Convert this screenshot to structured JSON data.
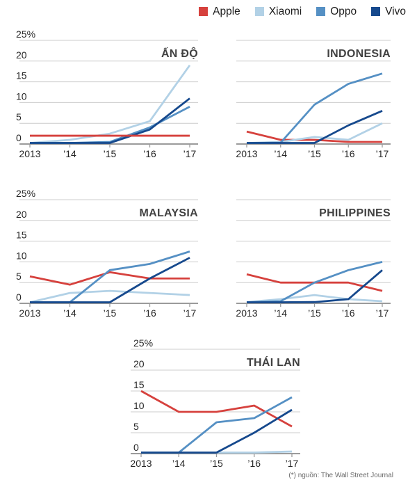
{
  "legend": {
    "items": [
      {
        "label": "Apple",
        "color_key": "apple"
      },
      {
        "label": "Xiaomi",
        "color_key": "xiaomi"
      },
      {
        "label": "Oppo",
        "color_key": "oppo"
      },
      {
        "label": "Vivo",
        "color_key": "vivo"
      }
    ]
  },
  "colors": {
    "apple": "#d6413d",
    "xiaomi": "#b2d1e6",
    "oppo": "#5590c4",
    "vivo": "#16498d",
    "gridline": "#cccccc",
    "baseline": "#9b9b9b",
    "axis_text": "#262626",
    "title_text": "#414141",
    "footer_text": "#6b6b6b"
  },
  "footer": {
    "source_note": "(*) nguồn: The Wall Street Journal"
  },
  "chart_data": [
    {
      "id": "india",
      "type": "line",
      "title": "ẤN ĐỘ",
      "x": [
        "2013",
        "’14",
        "’15",
        "’16",
        "’17"
      ],
      "y_ticks": [
        0,
        5,
        10,
        15,
        20,
        25
      ],
      "y_tick_labels": [
        "0",
        "5",
        "10",
        "15",
        "20",
        "25%"
      ],
      "y_max": 25,
      "grid": true,
      "unit": "%",
      "series": [
        {
          "name": "Xiaomi",
          "color_key": "xiaomi",
          "values": [
            0,
            1,
            2.5,
            5.5,
            19
          ]
        },
        {
          "name": "Oppo",
          "color_key": "oppo",
          "values": [
            0,
            0,
            0.5,
            4,
            9
          ]
        },
        {
          "name": "Vivo",
          "color_key": "vivo",
          "values": [
            0,
            0,
            0,
            3.5,
            11
          ]
        },
        {
          "name": "Apple",
          "color_key": "apple",
          "values": [
            2,
            2,
            2,
            2,
            2
          ]
        }
      ]
    },
    {
      "id": "indonesia",
      "type": "line",
      "title": "INDONESIA",
      "x": [
        "2013",
        "’14",
        "’15",
        "’16",
        "’17"
      ],
      "y_ticks": [
        0,
        5,
        10,
        15,
        20,
        25
      ],
      "y_tick_labels": [
        "0",
        "5",
        "10",
        "15",
        "20",
        "25%"
      ],
      "y_max": 25,
      "grid": true,
      "unit": "%",
      "series": [
        {
          "name": "Apple",
          "color_key": "apple",
          "values": [
            3,
            1,
            1,
            0.5,
            0.5
          ]
        },
        {
          "name": "Xiaomi",
          "color_key": "xiaomi",
          "values": [
            0,
            0.5,
            1.7,
            1,
            5
          ]
        },
        {
          "name": "Oppo",
          "color_key": "oppo",
          "values": [
            0,
            0.3,
            9.5,
            14.5,
            17
          ]
        },
        {
          "name": "Vivo",
          "color_key": "vivo",
          "values": [
            0,
            0,
            0,
            4.5,
            8
          ]
        }
      ]
    },
    {
      "id": "malaysia",
      "type": "line",
      "title": "MALAYSIA",
      "x": [
        "2013",
        "’14",
        "’15",
        "’16",
        "’17"
      ],
      "y_ticks": [
        0,
        5,
        10,
        15,
        20,
        25
      ],
      "y_tick_labels": [
        "0",
        "5",
        "10",
        "15",
        "20",
        "25%"
      ],
      "y_max": 25,
      "grid": true,
      "unit": "%",
      "series": [
        {
          "name": "Apple",
          "color_key": "apple",
          "values": [
            6.5,
            4.5,
            7.5,
            6,
            6
          ]
        },
        {
          "name": "Xiaomi",
          "color_key": "xiaomi",
          "values": [
            0,
            2.5,
            3,
            2.5,
            2
          ]
        },
        {
          "name": "Oppo",
          "color_key": "oppo",
          "values": [
            0,
            0,
            8,
            9.5,
            12.5
          ]
        },
        {
          "name": "Vivo",
          "color_key": "vivo",
          "values": [
            0,
            0,
            0,
            6,
            11
          ]
        }
      ]
    },
    {
      "id": "philippines",
      "type": "line",
      "title": "PHILIPPINES",
      "x": [
        "2013",
        "’14",
        "’15",
        "’16",
        "’17"
      ],
      "y_ticks": [
        0,
        5,
        10,
        15,
        20,
        25
      ],
      "y_tick_labels": [
        "0",
        "5",
        "10",
        "15",
        "20",
        "25%"
      ],
      "y_max": 25,
      "grid": true,
      "unit": "%",
      "series": [
        {
          "name": "Apple",
          "color_key": "apple",
          "values": [
            7,
            5,
            5,
            5,
            3
          ]
        },
        {
          "name": "Xiaomi",
          "color_key": "xiaomi",
          "values": [
            0.3,
            1,
            2,
            1,
            0.5
          ]
        },
        {
          "name": "Oppo",
          "color_key": "oppo",
          "values": [
            0,
            0.5,
            5,
            8,
            10
          ]
        },
        {
          "name": "Vivo",
          "color_key": "vivo",
          "values": [
            0,
            0,
            0.3,
            1,
            8
          ]
        }
      ]
    },
    {
      "id": "thailand",
      "type": "line",
      "title": "THÁI LAN",
      "x": [
        "2013",
        "’14",
        "’15",
        "’16",
        "’17"
      ],
      "y_ticks": [
        0,
        5,
        10,
        15,
        20,
        25
      ],
      "y_tick_labels": [
        "0",
        "5",
        "10",
        "15",
        "20",
        "25%"
      ],
      "y_max": 25,
      "grid": true,
      "unit": "%",
      "series": [
        {
          "name": "Apple",
          "color_key": "apple",
          "values": [
            15,
            10,
            10,
            11.5,
            6.5
          ]
        },
        {
          "name": "Xiaomi",
          "color_key": "xiaomi",
          "values": [
            0,
            0,
            0,
            0,
            0.5
          ]
        },
        {
          "name": "Oppo",
          "color_key": "oppo",
          "values": [
            0,
            0,
            7.5,
            8.5,
            13.5
          ]
        },
        {
          "name": "Vivo",
          "color_key": "vivo",
          "values": [
            0,
            0,
            0,
            5,
            10.5
          ]
        }
      ]
    }
  ]
}
